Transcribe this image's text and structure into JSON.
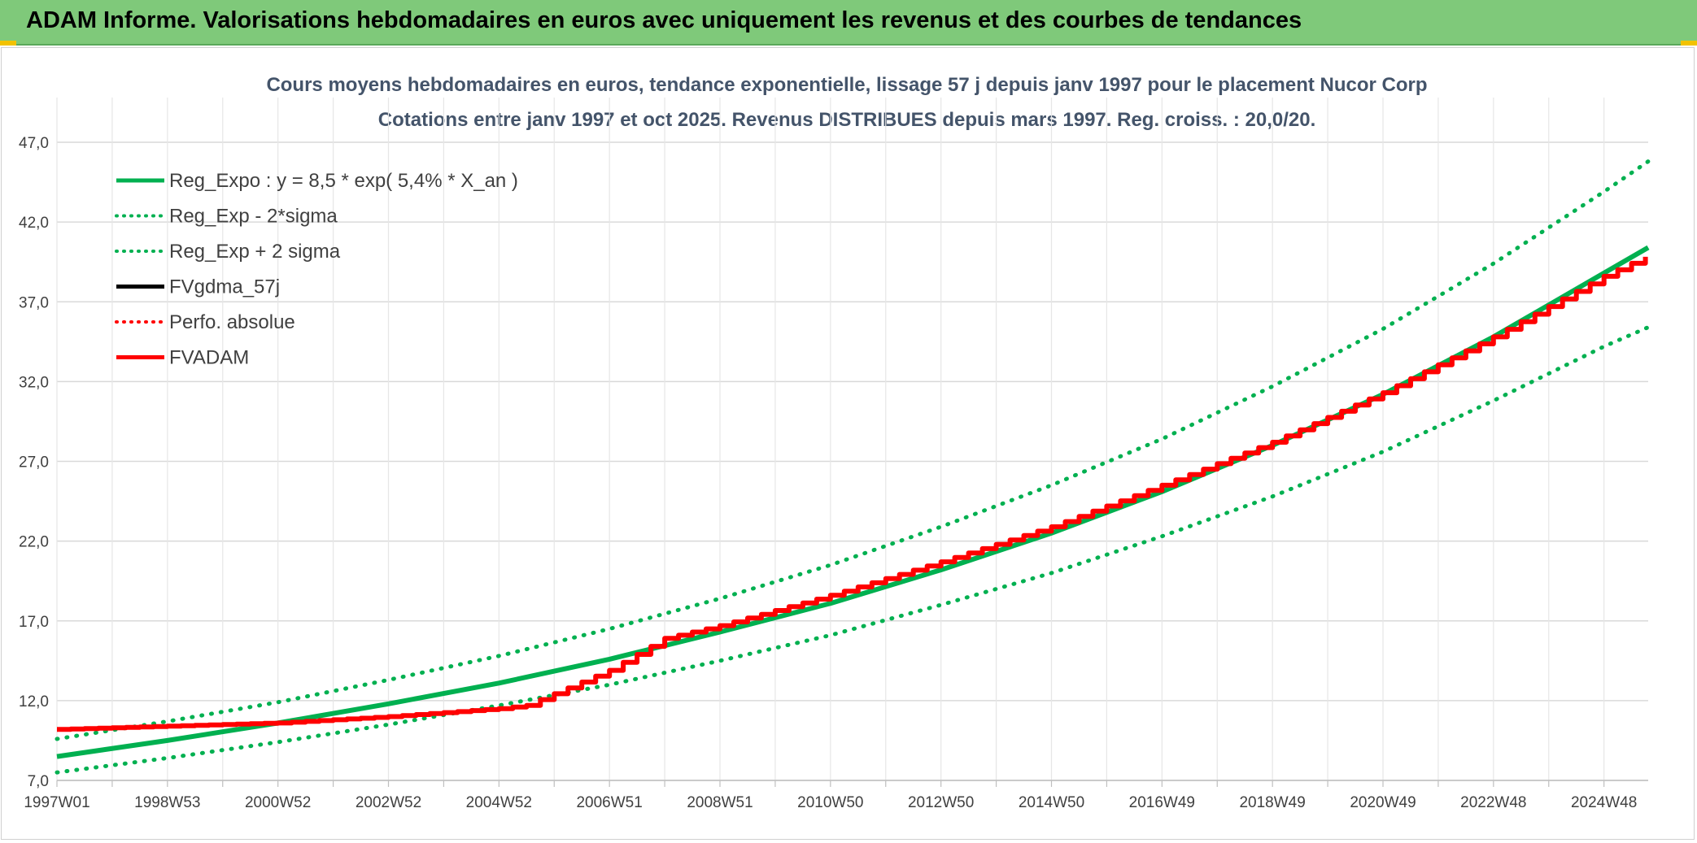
{
  "header": {
    "title": "ADAM Informe. Valorisations hebdomadaires en euros avec uniquement les revenus et des courbes de tendances",
    "background": "#7fc97a"
  },
  "chart_data": {
    "type": "line",
    "title_line1": "Cours moyens hebdomadaires en euros, tendance exponentielle, lissage 57 j depuis janv 1997 pour le placement Nucor Corp",
    "title_line2": "Cotations entre janv 1997 et oct 2025. Revenus DISTRIBUES depuis mars 1997. Reg. croiss. : 20,0/20.",
    "xlabel": "",
    "ylabel": "",
    "ylim": [
      7.0,
      47.0
    ],
    "y_ticks": [
      "7,0",
      "12,0",
      "17,0",
      "22,0",
      "27,0",
      "32,0",
      "37,0",
      "42,0",
      "47,0"
    ],
    "x_ticks": [
      "1997W01",
      "1998W53",
      "2000W52",
      "2002W52",
      "2004W52",
      "2006W51",
      "2008W51",
      "2010W50",
      "2012W50",
      "2014W50",
      "2016W49",
      "2018W49",
      "2020W49",
      "2022W48",
      "2024W48"
    ],
    "x_tick_years": [
      1997.0,
      1999.0,
      2001.0,
      2003.0,
      2005.0,
      2007.0,
      2009.0,
      2011.0,
      2013.0,
      2015.0,
      2017.0,
      2019.0,
      2021.0,
      2023.0,
      2025.0
    ],
    "x_range": [
      1997.0,
      2025.0
    ],
    "grid": true,
    "legend_position": "top-left",
    "series": [
      {
        "name": "Reg_Expo : y = 8,5 * exp( 5,4% *  X_an )",
        "color": "#00b050",
        "style": "solid",
        "x": [
          1997,
          1999,
          2001,
          2003,
          2005,
          2007,
          2009,
          2011,
          2013,
          2015,
          2017,
          2019,
          2021,
          2023,
          2025,
          2025.8
        ],
        "values": [
          8.5,
          9.5,
          10.6,
          11.8,
          13.1,
          14.6,
          16.3,
          18.1,
          20.2,
          22.5,
          25.1,
          28.0,
          31.2,
          34.8,
          38.8,
          40.4
        ]
      },
      {
        "name": "Reg_Exp - 2*sigma",
        "color": "#00b050",
        "style": "dotted",
        "x": [
          1997,
          1999,
          2001,
          2003,
          2005,
          2007,
          2009,
          2011,
          2013,
          2015,
          2017,
          2019,
          2021,
          2023,
          2025,
          2025.8
        ],
        "values": [
          7.5,
          8.4,
          9.4,
          10.5,
          11.7,
          13.0,
          14.5,
          16.1,
          18.0,
          20.0,
          22.3,
          24.8,
          27.6,
          30.8,
          34.2,
          35.4
        ]
      },
      {
        "name": "Reg_Exp + 2 sigma",
        "color": "#00b050",
        "style": "dotted",
        "x": [
          1997,
          1999,
          2001,
          2003,
          2005,
          2007,
          2009,
          2011,
          2013,
          2015,
          2017,
          2019,
          2021,
          2023,
          2025,
          2025.8
        ],
        "values": [
          9.6,
          10.7,
          11.9,
          13.3,
          14.8,
          16.5,
          18.4,
          20.5,
          22.9,
          25.5,
          28.4,
          31.7,
          35.3,
          39.4,
          43.9,
          45.8
        ]
      },
      {
        "name": "FVgdma_57j",
        "color": "#000000",
        "style": "solid",
        "x": [],
        "values": []
      },
      {
        "name": "Perfo. absolue",
        "color": "#ff0000",
        "style": "dotted",
        "x": [],
        "values": []
      },
      {
        "name": "FVADAM",
        "color": "#ff0000",
        "style": "solid",
        "x": [
          1997,
          1999,
          2001,
          2003,
          2005,
          2005.5,
          2007,
          2008,
          2009,
          2011,
          2013,
          2015,
          2017,
          2019,
          2021,
          2023,
          2025,
          2025.8
        ],
        "values": [
          10.2,
          10.4,
          10.6,
          11.0,
          11.5,
          11.7,
          13.9,
          15.9,
          16.7,
          18.6,
          20.7,
          22.9,
          25.5,
          28.2,
          31.3,
          34.8,
          38.6,
          39.9
        ]
      }
    ]
  }
}
